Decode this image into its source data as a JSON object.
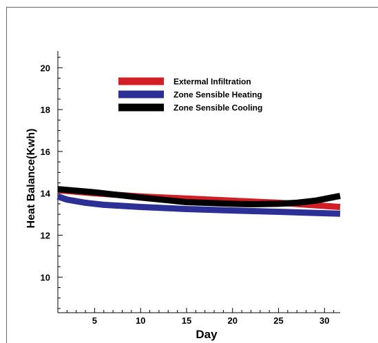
{
  "chart_data": {
    "type": "line",
    "title": "",
    "xlabel": "Day",
    "ylabel": "Heat Balance(Kwh)",
    "xlim": [
      1,
      31.7
    ],
    "ylim": [
      8.3,
      20.8
    ],
    "xticks": [
      5,
      10,
      15,
      20,
      25,
      30
    ],
    "yticks": [
      10,
      12,
      14,
      16,
      18,
      20
    ],
    "grid": false,
    "legend_position": "top-center",
    "series": [
      {
        "name": "Extermal Infiltration",
        "color": "#d11f25",
        "x": [
          1,
          5,
          10,
          15,
          20,
          25,
          30,
          31.7
        ],
        "y": [
          14.15,
          14.0,
          13.85,
          13.75,
          13.65,
          13.55,
          13.4,
          13.35
        ]
      },
      {
        "name": "Zone Sensible Heating",
        "color": "#2b2f96",
        "x": [
          1,
          2,
          4,
          6,
          10,
          15,
          20,
          25,
          30,
          31.7
        ],
        "y": [
          13.85,
          13.7,
          13.55,
          13.45,
          13.35,
          13.25,
          13.18,
          13.12,
          13.05,
          13.03
        ]
      },
      {
        "name": "Zone Sensible Cooling",
        "color": "#000000",
        "x": [
          1,
          5,
          10,
          15,
          20,
          22,
          25,
          27,
          29,
          31.7
        ],
        "y": [
          14.2,
          14.05,
          13.8,
          13.58,
          13.5,
          13.48,
          13.5,
          13.55,
          13.65,
          13.88
        ]
      }
    ]
  }
}
